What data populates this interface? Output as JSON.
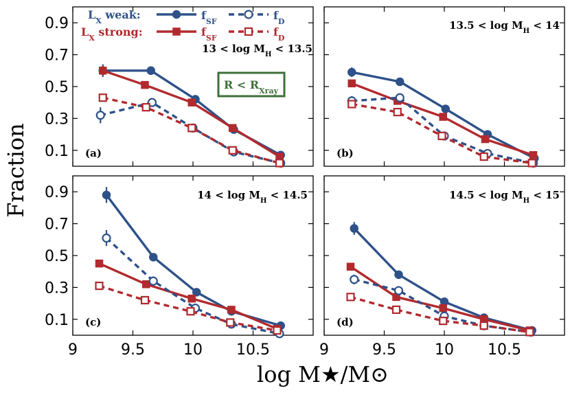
{
  "colors": {
    "weak": "#2e5189",
    "strong": "#b12a2e",
    "box": "#3f6f3a"
  },
  "legend": {
    "weak_label": "L",
    "weak_sub": "X",
    "weak_word": " weak:",
    "strong_label": "L",
    "strong_sub": "X",
    "strong_word": " strong:",
    "fsf": "f",
    "fsf_sub": "SF",
    "fd": "f",
    "fd_sub": "D"
  },
  "radius_box": {
    "main": "R < R",
    "sub": "Xray"
  },
  "chart_data": {
    "type": "line",
    "xlabel": "log M★/M⊙",
    "ylabel": "Fraction",
    "xlim": [
      9.0,
      11.0
    ],
    "ylim": [
      0.0,
      1.0
    ],
    "xticks": [
      "9",
      "9.5",
      "10",
      "10.5"
    ],
    "xtick_values": [
      9,
      9.5,
      10,
      10.5
    ],
    "yticks": [
      "0.1",
      "0.3",
      "0.5",
      "0.7",
      "0.9"
    ],
    "ytick_values": [
      0.1,
      0.3,
      0.5,
      0.7,
      0.9
    ],
    "panels": [
      {
        "label": "(a)",
        "condition": "13 < log M",
        "cond_sub": "H",
        "cond_tail": " < 13.5",
        "series": [
          {
            "name": "weak fSF",
            "group": "weak",
            "kind": "sf",
            "x": [
              9.25,
              9.65,
              10.02,
              10.34,
              10.73
            ],
            "y": [
              0.6,
              0.6,
              0.42,
              0.23,
              0.07
            ],
            "err": [
              0.04,
              0.02,
              0.01,
              0.01,
              0.01
            ]
          },
          {
            "name": "strong fSF",
            "group": "strong",
            "kind": "sf",
            "x": [
              9.25,
              9.6,
              9.99,
              10.33,
              10.72
            ],
            "y": [
              0.6,
              0.51,
              0.4,
              0.24,
              0.06
            ],
            "err": [
              0.03,
              0.01,
              0.01,
              0.01,
              0.01
            ]
          },
          {
            "name": "weak fD",
            "group": "weak",
            "kind": "d",
            "x": [
              9.23,
              9.66,
              10.0,
              10.34,
              10.73
            ],
            "y": [
              0.32,
              0.4,
              0.24,
              0.09,
              0.02
            ],
            "err": [
              0.05,
              0.02,
              0.01,
              0.01,
              0.01
            ]
          },
          {
            "name": "strong fD",
            "group": "strong",
            "kind": "d",
            "x": [
              9.25,
              9.61,
              9.99,
              10.33,
              10.72
            ],
            "y": [
              0.43,
              0.37,
              0.24,
              0.1,
              0.02
            ],
            "err": [
              0.02,
              0.01,
              0.01,
              0.01,
              0.01
            ]
          }
        ]
      },
      {
        "label": "(b)",
        "condition": "13.5 < log M",
        "cond_sub": "H",
        "cond_tail": " < 14",
        "series": [
          {
            "name": "weak fSF",
            "group": "weak",
            "kind": "sf",
            "x": [
              9.23,
              9.63,
              10.01,
              10.36,
              10.75
            ],
            "y": [
              0.59,
              0.53,
              0.36,
              0.2,
              0.05
            ],
            "err": [
              0.03,
              0.01,
              0.01,
              0.01,
              0.01
            ]
          },
          {
            "name": "strong fSF",
            "group": "strong",
            "kind": "sf",
            "x": [
              9.23,
              9.61,
              9.99,
              10.34,
              10.74
            ],
            "y": [
              0.52,
              0.41,
              0.31,
              0.17,
              0.07
            ],
            "err": [
              0.02,
              0.01,
              0.01,
              0.01,
              0.01
            ]
          },
          {
            "name": "weak fD",
            "group": "weak",
            "kind": "d",
            "x": [
              9.23,
              9.63,
              10.0,
              10.36,
              10.74
            ],
            "y": [
              0.41,
              0.43,
              0.19,
              0.08,
              0.02
            ],
            "err": [
              0.03,
              0.02,
              0.01,
              0.01,
              0.01
            ]
          },
          {
            "name": "strong fD",
            "group": "strong",
            "kind": "d",
            "x": [
              9.23,
              9.61,
              9.98,
              10.33,
              10.73
            ],
            "y": [
              0.39,
              0.34,
              0.19,
              0.06,
              0.02
            ],
            "err": [
              0.02,
              0.01,
              0.01,
              0.01,
              0.01
            ]
          }
        ]
      },
      {
        "label": "(c)",
        "condition": "14 < log M",
        "cond_sub": "H",
        "cond_tail": " < 14.5",
        "series": [
          {
            "name": "weak fSF",
            "group": "weak",
            "kind": "sf",
            "x": [
              9.28,
              9.67,
              10.03,
              10.32,
              10.73
            ],
            "y": [
              0.88,
              0.49,
              0.27,
              0.15,
              0.06
            ],
            "err": [
              0.05,
              0.02,
              0.01,
              0.01,
              0.01
            ]
          },
          {
            "name": "strong fSF",
            "group": "strong",
            "kind": "sf",
            "x": [
              9.22,
              9.61,
              9.99,
              10.32,
              10.7
            ],
            "y": [
              0.45,
              0.32,
              0.23,
              0.16,
              0.04
            ],
            "err": [
              0.01,
              0.01,
              0.01,
              0.01,
              0.01
            ]
          },
          {
            "name": "weak fD",
            "group": "weak",
            "kind": "d",
            "x": [
              9.28,
              9.67,
              10.02,
              10.32,
              10.72
            ],
            "y": [
              0.61,
              0.34,
              0.17,
              0.07,
              0.01
            ],
            "err": [
              0.05,
              0.02,
              0.01,
              0.01,
              0.01
            ]
          },
          {
            "name": "strong fD",
            "group": "strong",
            "kind": "d",
            "x": [
              9.22,
              9.6,
              9.98,
              10.31,
              10.7
            ],
            "y": [
              0.31,
              0.22,
              0.15,
              0.08,
              0.03
            ],
            "err": [
              0.01,
              0.01,
              0.01,
              0.01,
              0.01
            ]
          }
        ]
      },
      {
        "label": "(d)",
        "condition": "14.5 < log M",
        "cond_sub": "H",
        "cond_tail": " < 15",
        "series": [
          {
            "name": "weak fSF",
            "group": "weak",
            "kind": "sf",
            "x": [
              9.25,
              9.62,
              10.0,
              10.33,
              10.73
            ],
            "y": [
              0.67,
              0.38,
              0.21,
              0.11,
              0.03
            ],
            "err": [
              0.04,
              0.02,
              0.01,
              0.01,
              0.01
            ]
          },
          {
            "name": "strong fSF",
            "group": "strong",
            "kind": "sf",
            "x": [
              9.22,
              9.6,
              9.99,
              10.33,
              10.71
            ],
            "y": [
              0.43,
              0.24,
              0.17,
              0.1,
              0.03
            ],
            "err": [
              0.01,
              0.01,
              0.01,
              0.01,
              0.01
            ]
          },
          {
            "name": "weak fD",
            "group": "weak",
            "kind": "d",
            "x": [
              9.25,
              9.62,
              10.0,
              10.33,
              10.72
            ],
            "y": [
              0.35,
              0.28,
              0.12,
              0.06,
              0.02
            ],
            "err": [
              0.03,
              0.02,
              0.01,
              0.01,
              0.01
            ]
          },
          {
            "name": "strong fD",
            "group": "strong",
            "kind": "d",
            "x": [
              9.22,
              9.6,
              9.99,
              10.33,
              10.71
            ],
            "y": [
              0.24,
              0.16,
              0.09,
              0.06,
              0.02
            ],
            "err": [
              0.01,
              0.01,
              0.01,
              0.01,
              0.01
            ]
          }
        ]
      }
    ]
  }
}
